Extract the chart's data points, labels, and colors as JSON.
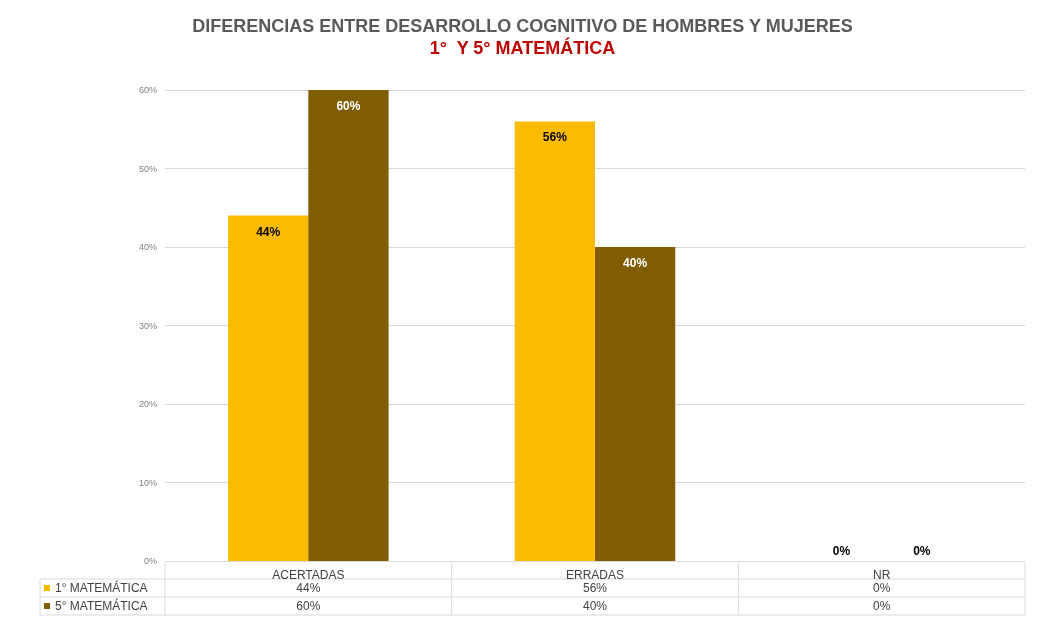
{
  "chart_data": {
    "type": "bar",
    "title": "DIFERENCIAS ENTRE DESARROLLO COGNITIVO DE HOMBRES Y MUJERES",
    "subtitle": "1°  Y 5° MATEMÁTICA",
    "categories": [
      "ACERTADAS",
      "ERRADAS",
      "NR"
    ],
    "series": [
      {
        "name": "1° MATEMÁTICA",
        "color": "#fbbc00",
        "values": [
          44,
          56,
          0
        ],
        "value_labels": [
          "44%",
          "56%",
          "0%"
        ]
      },
      {
        "name": "5° MATEMÁTICA",
        "color": "#7f5d00",
        "values": [
          60,
          40,
          0
        ],
        "value_labels": [
          "60%",
          "40%",
          "0%"
        ]
      }
    ],
    "ylim": [
      0,
      60
    ],
    "yticks": [
      {
        "value": 0,
        "label": "0%"
      },
      {
        "value": 10,
        "label": "10%"
      },
      {
        "value": 20,
        "label": "20%"
      },
      {
        "value": 30,
        "label": "30%"
      },
      {
        "value": 40,
        "label": "40%"
      },
      {
        "value": 50,
        "label": "50%"
      },
      {
        "value": 60,
        "label": "60%"
      }
    ],
    "grid": "y",
    "legend": "bottom"
  }
}
